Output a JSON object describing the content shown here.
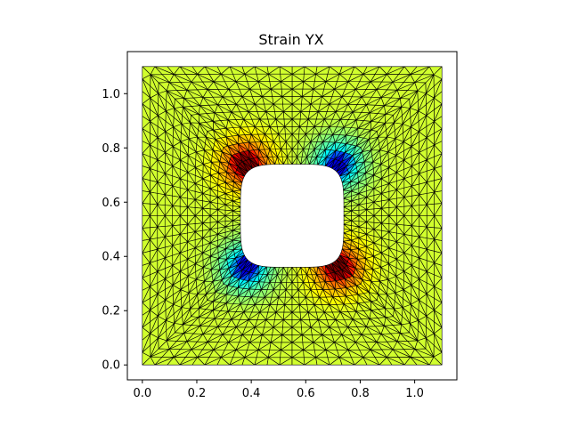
{
  "chart_data": {
    "type": "heatmap",
    "title": "Strain YX",
    "xlabel": "",
    "ylabel": "",
    "xlim": [
      -0.055,
      1.155
    ],
    "ylim": [
      -0.055,
      1.155
    ],
    "xticks": [
      "0.0",
      "0.2",
      "0.4",
      "0.6",
      "0.8",
      "1.0"
    ],
    "xtick_values": [
      0.0,
      0.2,
      0.4,
      0.6,
      0.8,
      1.0
    ],
    "yticks": [
      "0.0",
      "0.2",
      "0.4",
      "0.6",
      "0.8",
      "1.0"
    ],
    "ytick_values": [
      0.0,
      0.2,
      0.4,
      0.6,
      0.8,
      1.0
    ],
    "grid": false,
    "colormap": "jet",
    "domain": {
      "outer_square": [
        0.0,
        1.1
      ],
      "hole_center": [
        0.55,
        0.55
      ],
      "hole_half_width": 0.19,
      "hole_shape": "rounded square"
    },
    "strain_pattern": {
      "background_value": 0.0,
      "hot_spots": [
        {
          "corner": "top-left",
          "x": 0.38,
          "y": 0.74,
          "sign": "positive"
        },
        {
          "corner": "bottom-right",
          "x": 0.72,
          "y": 0.36,
          "sign": "positive"
        },
        {
          "corner": "top-right",
          "x": 0.72,
          "y": 0.74,
          "sign": "negative"
        },
        {
          "corner": "bottom-left",
          "x": 0.38,
          "y": 0.36,
          "sign": "negative"
        }
      ]
    },
    "mesh": {
      "type": "triangular",
      "radial_layers": 13,
      "nodes_per_side": 24,
      "edge_color": "#000000"
    }
  }
}
